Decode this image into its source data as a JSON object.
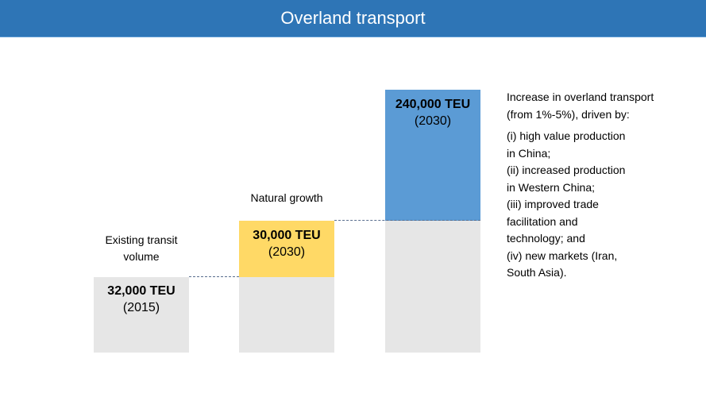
{
  "title": "Overland transport",
  "chart_data": {
    "type": "bar",
    "title": "Overland transport",
    "categories": [
      "Existing transit volume",
      "Natural growth",
      "Increase in overland transport"
    ],
    "series": [
      {
        "name": "Existing transit volume",
        "value_label": "32,000 TEU",
        "year_label": "(2015)",
        "value": 32000,
        "year": 2015,
        "color": "#E6E6E6"
      },
      {
        "name": "Natural growth",
        "value_label": "30,000 TEU",
        "year_label": "(2030)",
        "value": 30000,
        "year": 2030,
        "color": "#FFD966"
      },
      {
        "name": "Increase in overland transport",
        "value_label": "240,000 TEU",
        "year_label": "(2030)",
        "value": 240000,
        "year": 2030,
        "color": "#5B9BD5"
      }
    ]
  },
  "labels": {
    "existing": [
      "Existing transit",
      "volume"
    ],
    "natural": "Natural growth"
  },
  "side_text": {
    "intro": [
      "Increase in overland transport",
      "(from 1%-5%), driven by:"
    ],
    "items": [
      [
        "(i)  high value production",
        "in China;"
      ],
      [
        "(ii) increased production",
        "in Western China;"
      ],
      [
        "(iii) improved trade",
        "facilitation and",
        "technology; and"
      ],
      [
        "(iv) new markets (Iran,",
        "South Asia)."
      ]
    ]
  },
  "colors": {
    "header": "#2E75B6",
    "gray": "#E6E6E6",
    "yellow": "#FFD966",
    "blue": "#5B9BD5"
  }
}
